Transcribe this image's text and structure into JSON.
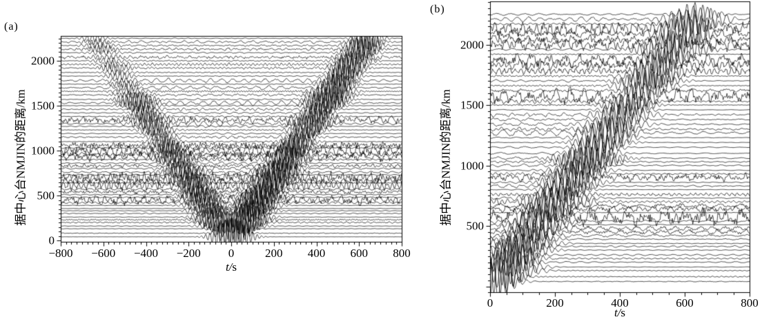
{
  "figure": {
    "background": "#ffffff",
    "trace_color": "#000000",
    "text_color": "#000000"
  },
  "chart_data": [
    {
      "type": "line",
      "panel_label": "(a)",
      "xlabel": "t/s",
      "ylabel": "据中心台NMJIN的距离/km",
      "xlim": [
        -800,
        800
      ],
      "xticks": [
        -800,
        -600,
        -400,
        -200,
        0,
        200,
        400,
        600,
        800
      ],
      "xtick_labels": [
        "−800",
        "−600",
        "−400",
        "−200",
        "0",
        "200",
        "400",
        "600",
        "800"
      ],
      "x_minor_tick_step_s": 25,
      "ylim": [
        -15,
        2280
      ],
      "yticks": [
        0,
        500,
        1000,
        1500,
        2000
      ],
      "ytick_labels": [
        "0",
        "500",
        "1000",
        "1500",
        "2000"
      ],
      "y_minor_tick_step_km": 50,
      "grid": false,
      "legend": "none",
      "branches": "positive and negative time lag (two-sided, V-shaped moveout with vertex near t = 0 at the smallest distance)",
      "moveout_velocity_km_per_s": 3.5,
      "trace_distances_km": [
        40,
        80,
        130,
        160,
        200,
        230,
        260,
        300,
        330,
        355,
        390,
        420,
        450,
        480,
        510,
        540,
        570,
        610,
        640,
        665,
        700,
        730,
        760,
        800,
        830,
        860,
        900,
        930,
        960,
        1000,
        1030,
        1060,
        1100,
        1150,
        1190,
        1230,
        1270,
        1300,
        1340,
        1380,
        1420,
        1460,
        1500,
        1530,
        1570,
        1620,
        1660,
        1700,
        1740,
        1780,
        1830,
        1870,
        1920,
        1960,
        2000,
        2040,
        2090,
        2130,
        2170,
        2210,
        2250
      ]
    },
    {
      "type": "line",
      "panel_label": "(b)",
      "xlabel": "t/s",
      "ylabel": "据中心台NMJIN的距离/km",
      "xlim": [
        0,
        800
      ],
      "xticks": [
        0,
        200,
        400,
        600,
        800
      ],
      "xtick_labels": [
        "0",
        "200",
        "400",
        "600",
        "800"
      ],
      "x_minor_tick_step_s": 50,
      "ylim": [
        -50,
        2360
      ],
      "yticks": [
        500,
        1000,
        1500,
        2000
      ],
      "ytick_labels": [
        "500",
        "1000",
        "1500",
        "2000"
      ],
      "y_minor_tick_step_km": 50,
      "grid": false,
      "legend": "none",
      "branches": "positive time lag only (single diagonal moveout from lower-left to upper-right)",
      "moveout_velocity_km_per_s": 3.5,
      "trace_distances_km": [
        40,
        80,
        130,
        160,
        200,
        230,
        260,
        300,
        330,
        355,
        390,
        420,
        450,
        480,
        510,
        540,
        570,
        610,
        640,
        665,
        700,
        730,
        760,
        800,
        830,
        860,
        900,
        930,
        960,
        1000,
        1030,
        1060,
        1100,
        1150,
        1190,
        1230,
        1270,
        1300,
        1340,
        1380,
        1420,
        1460,
        1500,
        1530,
        1570,
        1620,
        1660,
        1700,
        1740,
        1780,
        1830,
        1870,
        1920,
        1960,
        2000,
        2040,
        2090,
        2130,
        2170,
        2210,
        2250
      ]
    }
  ]
}
